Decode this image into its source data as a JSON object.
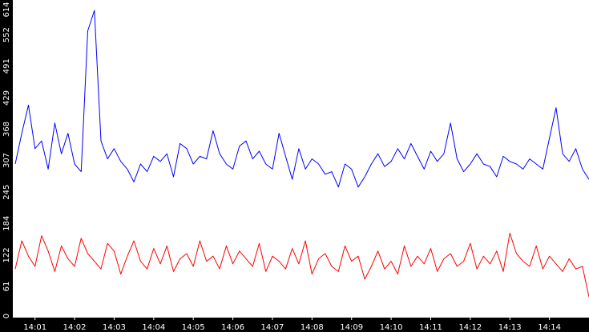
{
  "chart_data": {
    "type": "line",
    "title": "",
    "xlabel": "",
    "ylabel": "",
    "grid": false,
    "legend": "none",
    "ylim": [
      0,
      614
    ],
    "xlim": [
      "14:00:30",
      "14:15:00"
    ],
    "y_ticks": [
      "0",
      "61",
      "122",
      "184",
      "245",
      "307",
      "368",
      "429",
      "491",
      "552",
      "614"
    ],
    "x_ticks": [
      "14:01",
      "14:02",
      "14:03",
      "14:04",
      "14:05",
      "14:06",
      "14:07",
      "14:08",
      "14:09",
      "14:10",
      "14:11",
      "14:12",
      "14:13",
      "14:14"
    ],
    "colors": {
      "axis_background": "#000000",
      "plot_background": "#ffffff",
      "tick_text": "#ffffff"
    },
    "series": [
      {
        "color": "#0000ff",
        "x": [
          "14:00:30",
          "14:00:40",
          "14:00:50",
          "14:01:00",
          "14:01:10",
          "14:01:20",
          "14:01:30",
          "14:01:40",
          "14:01:50",
          "14:02:00",
          "14:02:10",
          "14:02:20",
          "14:02:30",
          "14:02:40",
          "14:02:50",
          "14:03:00",
          "14:03:10",
          "14:03:20",
          "14:03:30",
          "14:03:40",
          "14:03:50",
          "14:04:00",
          "14:04:10",
          "14:04:20",
          "14:04:30",
          "14:04:40",
          "14:04:50",
          "14:05:00",
          "14:05:10",
          "14:05:20",
          "14:05:30",
          "14:05:40",
          "14:05:50",
          "14:06:00",
          "14:06:10",
          "14:06:20",
          "14:06:30",
          "14:06:40",
          "14:06:50",
          "14:07:00",
          "14:07:10",
          "14:07:20",
          "14:07:30",
          "14:07:40",
          "14:07:50",
          "14:08:00",
          "14:08:10",
          "14:08:20",
          "14:08:30",
          "14:08:40",
          "14:08:50",
          "14:09:00",
          "14:09:10",
          "14:09:20",
          "14:09:30",
          "14:09:40",
          "14:09:50",
          "14:10:00",
          "14:10:10",
          "14:10:20",
          "14:10:30",
          "14:10:40",
          "14:10:50",
          "14:11:00",
          "14:11:10",
          "14:11:20",
          "14:11:30",
          "14:11:40",
          "14:11:50",
          "14:12:00",
          "14:12:10",
          "14:12:20",
          "14:12:30",
          "14:12:40",
          "14:12:50",
          "14:13:00",
          "14:13:10",
          "14:13:20",
          "14:13:30",
          "14:13:40",
          "14:13:50",
          "14:14:00",
          "14:14:10",
          "14:14:20",
          "14:14:30",
          "14:14:40",
          "14:14:50",
          "14:15:00"
        ],
        "values": [
          300,
          360,
          415,
          330,
          345,
          290,
          380,
          320,
          360,
          300,
          285,
          560,
          600,
          345,
          310,
          330,
          305,
          290,
          265,
          300,
          285,
          315,
          305,
          320,
          275,
          340,
          330,
          300,
          315,
          310,
          365,
          320,
          300,
          290,
          335,
          345,
          310,
          325,
          300,
          290,
          360,
          315,
          270,
          330,
          290,
          310,
          300,
          280,
          285,
          255,
          300,
          290,
          255,
          275,
          300,
          320,
          295,
          305,
          330,
          310,
          340,
          315,
          290,
          325,
          305,
          320,
          380,
          310,
          285,
          300,
          320,
          300,
          295,
          275,
          315,
          305,
          300,
          290,
          310,
          300,
          290,
          350,
          410,
          320,
          305,
          330,
          290,
          270
        ]
      },
      {
        "color": "#ff0000",
        "x": [
          "14:00:30",
          "14:00:40",
          "14:00:50",
          "14:01:00",
          "14:01:10",
          "14:01:20",
          "14:01:30",
          "14:01:40",
          "14:01:50",
          "14:02:00",
          "14:02:10",
          "14:02:20",
          "14:02:30",
          "14:02:40",
          "14:02:50",
          "14:03:00",
          "14:03:10",
          "14:03:20",
          "14:03:30",
          "14:03:40",
          "14:03:50",
          "14:04:00",
          "14:04:10",
          "14:04:20",
          "14:04:30",
          "14:04:40",
          "14:04:50",
          "14:05:00",
          "14:05:10",
          "14:05:20",
          "14:05:30",
          "14:05:40",
          "14:05:50",
          "14:06:00",
          "14:06:10",
          "14:06:20",
          "14:06:30",
          "14:06:40",
          "14:06:50",
          "14:07:00",
          "14:07:10",
          "14:07:20",
          "14:07:30",
          "14:07:40",
          "14:07:50",
          "14:08:00",
          "14:08:10",
          "14:08:20",
          "14:08:30",
          "14:08:40",
          "14:08:50",
          "14:09:00",
          "14:09:10",
          "14:09:20",
          "14:09:30",
          "14:09:40",
          "14:09:50",
          "14:10:00",
          "14:10:10",
          "14:10:20",
          "14:10:30",
          "14:10:40",
          "14:10:50",
          "14:11:00",
          "14:11:10",
          "14:11:20",
          "14:11:30",
          "14:11:40",
          "14:11:50",
          "14:12:00",
          "14:12:10",
          "14:12:20",
          "14:12:30",
          "14:12:40",
          "14:12:50",
          "14:13:00",
          "14:13:10",
          "14:13:20",
          "14:13:30",
          "14:13:40",
          "14:13:50",
          "14:14:00",
          "14:14:10",
          "14:14:20",
          "14:14:30",
          "14:14:40",
          "14:14:50",
          "14:15:00"
        ],
        "values": [
          95,
          150,
          120,
          100,
          160,
          130,
          90,
          140,
          115,
          100,
          155,
          125,
          110,
          95,
          145,
          130,
          85,
          120,
          150,
          110,
          95,
          135,
          105,
          140,
          90,
          115,
          125,
          100,
          150,
          110,
          120,
          95,
          140,
          105,
          130,
          115,
          100,
          145,
          90,
          120,
          110,
          95,
          135,
          105,
          150,
          85,
          115,
          125,
          100,
          90,
          140,
          110,
          120,
          75,
          100,
          130,
          95,
          110,
          85,
          140,
          100,
          120,
          105,
          135,
          90,
          115,
          125,
          100,
          110,
          145,
          95,
          120,
          105,
          130,
          90,
          165,
          125,
          110,
          100,
          140,
          95,
          120,
          105,
          90,
          115,
          95,
          100,
          40
        ]
      }
    ]
  }
}
